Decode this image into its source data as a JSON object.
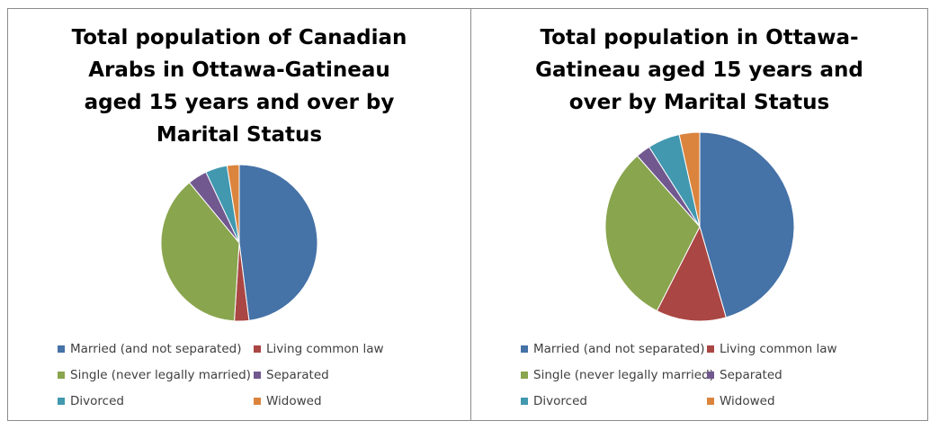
{
  "chart_data": [
    {
      "type": "pie",
      "title": "Total population of Canadian Arabs in Ottawa-Gatineau aged 15 years and over by Marital Status",
      "categories": [
        "Married (and not separated)",
        "Living common law",
        "Single (never legally married)",
        "Separated",
        "Divorced",
        "Widowed"
      ],
      "values": [
        48,
        3,
        38,
        4,
        4.5,
        2.5
      ],
      "colors": [
        "#4572A7",
        "#AA4643",
        "#89A54E",
        "#71588F",
        "#4198AF",
        "#DB843D"
      ],
      "legend_position": "bottom"
    },
    {
      "type": "pie",
      "title": "Total population in Ottawa-Gatineau aged 15 years and over by Marital Status",
      "categories": [
        "Married (and not separated)",
        "Living common law",
        "Single (never legally married)",
        "Separated",
        "Divorced",
        "Widowed"
      ],
      "values": [
        45.5,
        12,
        31,
        2.5,
        5.5,
        3.5
      ],
      "colors": [
        "#4572A7",
        "#AA4643",
        "#89A54E",
        "#71588F",
        "#4198AF",
        "#DB843D"
      ],
      "legend_position": "bottom"
    }
  ]
}
